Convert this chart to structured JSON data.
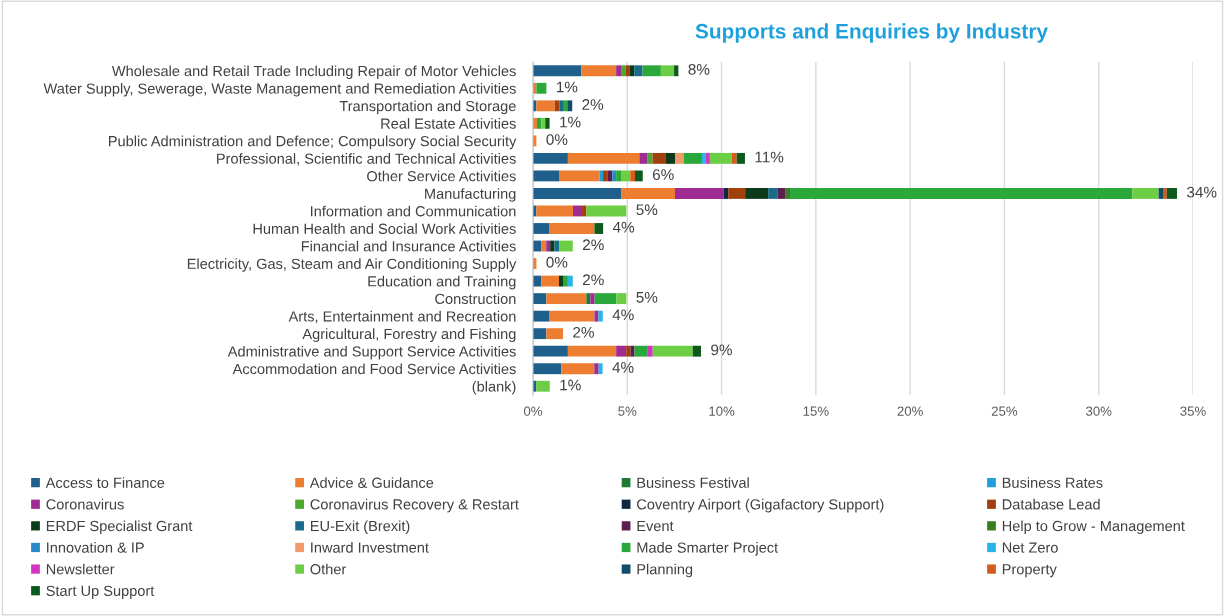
{
  "chart_data": {
    "type": "bar",
    "orientation": "horizontal",
    "stacked": true,
    "title": "Supports and Enquiries by Industry",
    "categories": [
      "Wholesale and Retail Trade Including Repair of Motor Vehicles",
      "Water Supply, Sewerage, Waste Management and Remediation Activities",
      "Transportation and Storage",
      "Real Estate Activities",
      "Public Administration and Defence; Compulsory Social Security",
      "Professional, Scientific and Technical Activities",
      "Other Service Activities",
      "Manufacturing",
      "Information and Communication",
      "Human Health and Social Work Activities",
      "Financial and Insurance Activities",
      "Electricity, Gas, Steam and Air Conditioning Supply",
      "Education and Training",
      "Construction",
      "Arts, Entertainment and Recreation",
      "Agricultural, Forestry and Fishing",
      "Administrative and Support Service Activities",
      "Accommodation and Food Service Activities",
      "(blank)"
    ],
    "series": [
      {
        "name": "Access to Finance",
        "color": "#1f5f8b",
        "values": [
          2.56,
          null,
          0.18,
          null,
          null,
          1.85,
          1.41,
          4.67,
          0.18,
          0.88,
          0.44,
          null,
          0.44,
          0.71,
          0.88,
          0.71,
          1.85,
          1.5,
          0.18
        ]
      },
      {
        "name": "Advice & Guidance",
        "color": "#ed7d31",
        "values": [
          1.85,
          0.18,
          0.97,
          0.21,
          0.18,
          3.79,
          2.12,
          2.86,
          1.94,
          2.38,
          0.26,
          0.18,
          0.94,
          2.12,
          2.38,
          0.88,
          2.56,
          1.75,
          null
        ]
      },
      {
        "name": "Business Festival",
        "color": "#1e7b34",
        "values": [
          null,
          null,
          null,
          null,
          null,
          null,
          null,
          null,
          null,
          null,
          null,
          null,
          null,
          0.21,
          null,
          null,
          null,
          null,
          null
        ]
      },
      {
        "name": "Business Rates",
        "color": "#1ea0dc",
        "values": [
          null,
          null,
          null,
          null,
          null,
          null,
          0.18,
          null,
          null,
          null,
          null,
          null,
          null,
          null,
          null,
          null,
          null,
          null,
          null
        ]
      },
      {
        "name": "Coronavirus",
        "color": "#a02b93",
        "values": [
          0.26,
          null,
          null,
          null,
          null,
          0.44,
          null,
          2.57,
          0.48,
          null,
          0.21,
          null,
          null,
          0.23,
          0.21,
          null,
          0.53,
          0.23,
          null
        ]
      },
      {
        "name": "Coronavirus Recovery & Restart",
        "color": "#4ea72e",
        "values": [
          0.26,
          null,
          null,
          null,
          null,
          0.26,
          null,
          null,
          null,
          null,
          null,
          null,
          null,
          null,
          null,
          null,
          null,
          null,
          null
        ]
      },
      {
        "name": "Coventry Airport (Gigafactory Support)",
        "color": "#0e2841",
        "values": [
          null,
          null,
          null,
          null,
          null,
          null,
          null,
          0.25,
          null,
          null,
          null,
          null,
          null,
          null,
          null,
          null,
          null,
          null,
          null
        ]
      },
      {
        "name": "Database Lead",
        "color": "#a0410d",
        "values": [
          0.18,
          null,
          0.26,
          null,
          null,
          0.71,
          0.26,
          0.9,
          0.23,
          null,
          null,
          null,
          null,
          null,
          null,
          null,
          0.23,
          null,
          null
        ]
      },
      {
        "name": "ERDF Specialist Grant",
        "color": "#0d3a1a",
        "values": [
          0.26,
          null,
          null,
          null,
          null,
          0.48,
          null,
          1.22,
          null,
          null,
          0.23,
          null,
          0.21,
          null,
          null,
          null,
          null,
          null,
          null
        ]
      },
      {
        "name": "EU-Exit (Brexit)",
        "color": "#1a6b8a",
        "values": [
          0.44,
          null,
          0.18,
          null,
          null,
          null,
          null,
          0.49,
          null,
          null,
          0.26,
          null,
          null,
          null,
          null,
          null,
          null,
          null,
          null
        ]
      },
      {
        "name": "Event",
        "color": "#5c1d4f",
        "values": [
          null,
          null,
          null,
          null,
          null,
          null,
          0.23,
          0.44,
          null,
          null,
          null,
          null,
          null,
          null,
          null,
          null,
          0.21,
          null,
          null
        ]
      },
      {
        "name": "Help to Grow - Management",
        "color": "#3b7d23",
        "values": [
          null,
          null,
          null,
          null,
          null,
          null,
          null,
          0.23,
          null,
          null,
          null,
          null,
          null,
          null,
          null,
          null,
          null,
          null,
          null
        ]
      },
      {
        "name": "Innovation & IP",
        "color": "#2a8ac7",
        "values": [
          null,
          null,
          null,
          null,
          null,
          null,
          0.21,
          null,
          null,
          null,
          null,
          null,
          null,
          null,
          null,
          null,
          null,
          null,
          null
        ]
      },
      {
        "name": "Inward Investment",
        "color": "#f09a6a",
        "values": [
          null,
          null,
          null,
          null,
          null,
          0.46,
          null,
          null,
          null,
          null,
          null,
          null,
          null,
          null,
          null,
          null,
          null,
          null,
          null
        ]
      },
      {
        "name": "Made Smarter Project",
        "color": "#2aa83a",
        "values": [
          0.97,
          0.53,
          0.23,
          0.23,
          null,
          0.97,
          0.26,
          18.15,
          null,
          null,
          null,
          null,
          0.26,
          1.15,
          null,
          null,
          0.71,
          null,
          null
        ]
      },
      {
        "name": "Net Zero",
        "color": "#29b5e8",
        "values": [
          null,
          null,
          null,
          null,
          null,
          0.21,
          null,
          null,
          null,
          null,
          null,
          null,
          0.26,
          null,
          0.23,
          null,
          null,
          0.21,
          null
        ]
      },
      {
        "name": "Newsletter",
        "color": "#d235c0",
        "values": [
          null,
          null,
          null,
          null,
          null,
          0.21,
          null,
          null,
          null,
          null,
          null,
          null,
          null,
          null,
          null,
          null,
          0.26,
          null,
          null
        ]
      },
      {
        "name": "Other",
        "color": "#6cce45",
        "values": [
          0.7,
          null,
          null,
          0.21,
          null,
          1.16,
          0.49,
          1.4,
          2.12,
          null,
          0.71,
          null,
          null,
          0.53,
          null,
          null,
          2.12,
          null,
          0.71
        ]
      },
      {
        "name": "Planning",
        "color": "#0f4d6b",
        "values": [
          null,
          null,
          0.26,
          null,
          null,
          null,
          null,
          0.23,
          null,
          null,
          null,
          null,
          null,
          null,
          null,
          null,
          null,
          null,
          null
        ]
      },
      {
        "name": "Property",
        "color": "#d35c1a",
        "values": [
          null,
          null,
          null,
          null,
          null,
          0.26,
          0.25,
          0.2,
          null,
          null,
          null,
          null,
          null,
          null,
          null,
          null,
          null,
          null,
          null
        ]
      },
      {
        "name": "Start Up Support",
        "color": "#0e5a1e",
        "values": [
          0.23,
          null,
          null,
          0.23,
          null,
          0.44,
          0.41,
          0.54,
          null,
          0.46,
          null,
          null,
          null,
          null,
          null,
          null,
          0.44,
          null,
          null
        ]
      }
    ],
    "totals": [
      "8%",
      "1%",
      "2%",
      "1%",
      "0%",
      "11%",
      "6%",
      "34%",
      "5%",
      "4%",
      "2%",
      "0%",
      "2%",
      "5%",
      "4%",
      "2%",
      "9%",
      "4%",
      "1%"
    ],
    "xlim": [
      0,
      35
    ],
    "xticks": [
      {
        "value": 0,
        "label": "0%"
      },
      {
        "value": 5,
        "label": "5%"
      },
      {
        "value": 10,
        "label": "10%"
      },
      {
        "value": 15,
        "label": "15%"
      },
      {
        "value": 20,
        "label": "20%"
      },
      {
        "value": 25,
        "label": "25%"
      },
      {
        "value": 30,
        "label": "30%"
      },
      {
        "value": 35,
        "label": "35%"
      }
    ],
    "grid": "x",
    "legend": "bottom"
  }
}
